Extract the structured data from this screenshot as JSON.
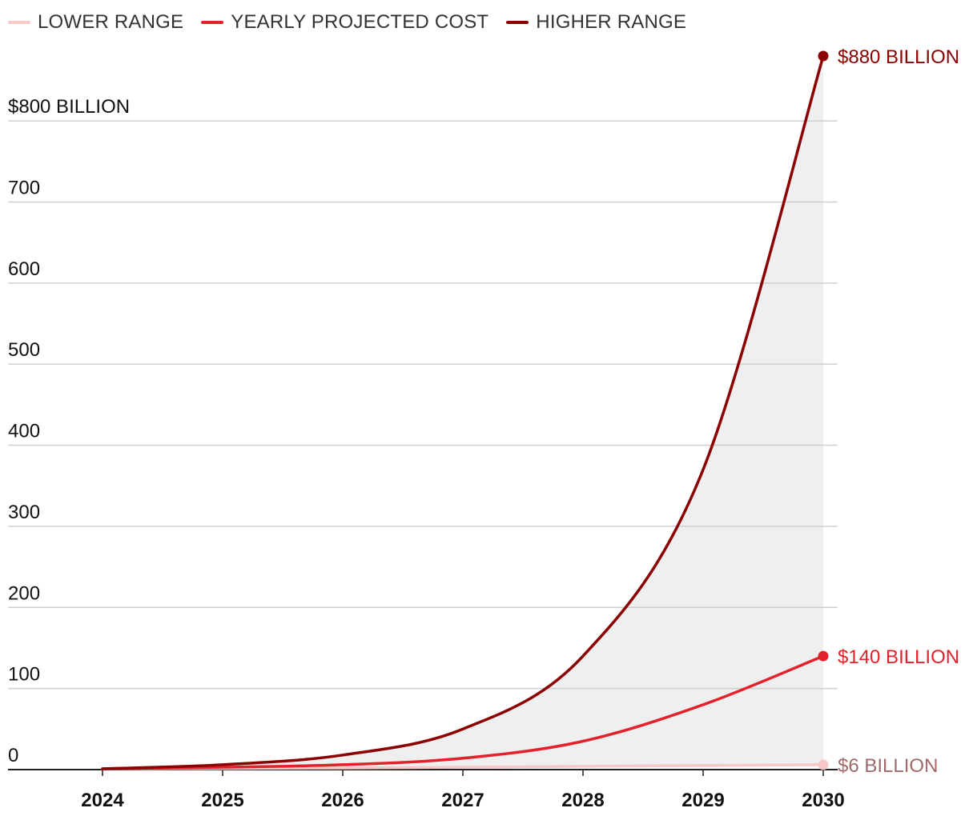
{
  "chart_data": {
    "type": "line",
    "x": [
      2024,
      2025,
      2026,
      2027,
      2028,
      2029,
      2030
    ],
    "xtick_labels": [
      "2024",
      "2025",
      "2026",
      "2027",
      "2028",
      "2029",
      "2030"
    ],
    "ytick_values": [
      0,
      100,
      200,
      300,
      400,
      500,
      600,
      700,
      800
    ],
    "ytick_labels": [
      "0",
      "100",
      "200",
      "300",
      "400",
      "500",
      "600",
      "700",
      "$800 BILLION"
    ],
    "ylim": [
      0,
      880
    ],
    "xlim": [
      2024,
      2030
    ],
    "grid": true,
    "legend_position": "top-left",
    "shaded_band": "between lower range and higher range",
    "series": [
      {
        "name": "LOWER RANGE",
        "color": "#f8c8c8",
        "values": [
          1,
          1.5,
          2,
          3,
          4,
          5,
          6
        ],
        "end_label": "$6 BILLION",
        "end_label_color": "#a06a6a"
      },
      {
        "name": "YEARLY PROJECTED COST",
        "color": "#e3212b",
        "values": [
          1,
          3,
          6,
          14,
          35,
          80,
          140
        ],
        "end_label": "$140 BILLION",
        "end_label_color": "#e3212b"
      },
      {
        "name": "HIGHER RANGE",
        "color": "#8b0000",
        "values": [
          1,
          6,
          18,
          50,
          140,
          370,
          880
        ],
        "end_label": "$880 BILLION",
        "end_label_color": "#8b0000"
      }
    ]
  }
}
